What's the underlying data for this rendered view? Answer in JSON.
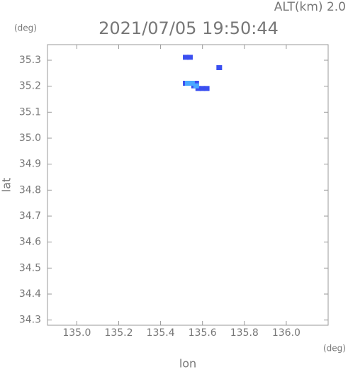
{
  "chart_data": {
    "type": "scatter",
    "altitude_label": "ALT(km) 2.0",
    "title": "2021/07/05 19:50:44",
    "y_unit": "(deg)",
    "x_unit": "(deg)",
    "ylabel": "lat",
    "xlabel": "lon",
    "xlim": [
      134.86,
      136.2
    ],
    "ylim": [
      34.28,
      35.36
    ],
    "xticks": [
      {
        "value": 135.0,
        "label": "135.0"
      },
      135.2,
      135.4,
      135.6,
      135.8,
      {
        "value": 136.0,
        "label": "136.0"
      }
    ],
    "yticks": [
      35.3,
      35.2,
      35.1,
      {
        "value": 35.0,
        "label": "35.0"
      },
      34.9,
      34.8,
      34.7,
      34.6,
      34.5,
      34.4,
      34.3
    ],
    "grid": false,
    "series": [
      {
        "color": "#3a4ff0",
        "x": [
          135.52,
          135.54,
          135.68,
          135.52,
          135.56,
          135.58,
          135.6,
          135.62,
          135.57
        ],
        "values": [
          35.31,
          35.31,
          35.27,
          35.21,
          35.2,
          35.19,
          35.19,
          35.19,
          35.21
        ]
      },
      {
        "color": "#4aa8ff",
        "x": [
          135.53,
          135.55,
          135.57
        ],
        "values": [
          35.21,
          35.21,
          35.2
        ]
      }
    ]
  }
}
